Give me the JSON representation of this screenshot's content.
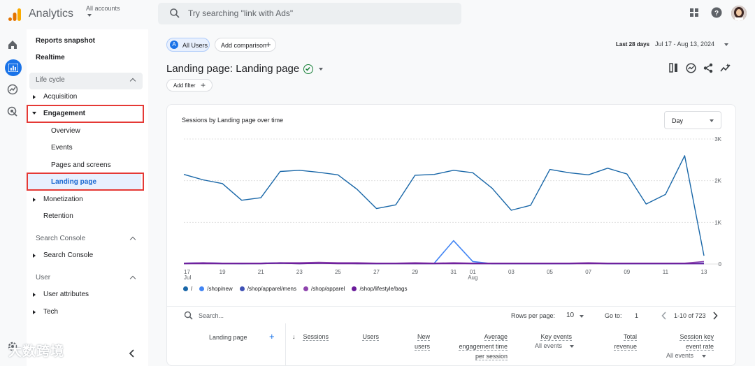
{
  "header": {
    "app_name": "Analytics",
    "account_label": "All accounts",
    "search_placeholder": "Try searching \"link with Ads\""
  },
  "nav": {
    "reports_snapshot": "Reports snapshot",
    "realtime": "Realtime",
    "lifecycle": "Life cycle",
    "acquisition": "Acquisition",
    "engagement": "Engagement",
    "overview": "Overview",
    "events": "Events",
    "pages_and_screens": "Pages and screens",
    "landing_page": "Landing page",
    "monetization": "Monetization",
    "retention": "Retention",
    "search_console_section": "Search Console",
    "search_console_item": "Search Console",
    "user_section": "User",
    "user_attributes": "User attributes",
    "tech": "Tech"
  },
  "toolbar": {
    "segment_letter": "A",
    "segment_label": "All Users",
    "add_comparison": "Add comparison",
    "date_prefix": "Last 28 days",
    "date_range": "Jul 17 - Aug 13, 2024",
    "page_title": "Landing page: Landing page",
    "add_filter": "Add filter"
  },
  "chart_data": {
    "type": "line",
    "title": "Sessions by Landing page over time",
    "granularity": "Day",
    "x_ticks": [
      "17",
      "19",
      "21",
      "23",
      "25",
      "27",
      "29",
      "31",
      "01",
      "03",
      "05",
      "07",
      "09",
      "11",
      "13"
    ],
    "x_month_labels": {
      "17": "Jul",
      "01": "Aug"
    },
    "y_ticks": [
      "0",
      "1K",
      "2K",
      "3K"
    ],
    "ylim": [
      0,
      3000
    ],
    "x": [
      "Jul 17",
      "Jul 18",
      "Jul 19",
      "Jul 20",
      "Jul 21",
      "Jul 22",
      "Jul 23",
      "Jul 24",
      "Jul 25",
      "Jul 26",
      "Jul 27",
      "Jul 28",
      "Jul 29",
      "Jul 30",
      "Jul 31",
      "Aug 01",
      "Aug 02",
      "Aug 03",
      "Aug 04",
      "Aug 05",
      "Aug 06",
      "Aug 07",
      "Aug 08",
      "Aug 09",
      "Aug 10",
      "Aug 11",
      "Aug 12",
      "Aug 13"
    ],
    "series": [
      {
        "name": "/",
        "color": "#1967a8",
        "values": [
          2150,
          2020,
          1930,
          1530,
          1590,
          2220,
          2250,
          2200,
          2140,
          1790,
          1330,
          1420,
          2130,
          2150,
          2250,
          2190,
          1820,
          1290,
          1410,
          2270,
          2190,
          2140,
          2300,
          2160,
          1440,
          1670,
          2600,
          200
        ]
      },
      {
        "name": "/shop/new",
        "color": "#4285f4",
        "values": [
          20,
          30,
          20,
          10,
          20,
          30,
          20,
          30,
          20,
          20,
          10,
          20,
          20,
          20,
          560,
          60,
          10,
          10,
          10,
          10,
          10,
          20,
          10,
          10,
          10,
          10,
          10,
          20
        ]
      },
      {
        "name": "/shop/apparel/mens",
        "color": "#3f51b5",
        "values": [
          10,
          20,
          10,
          10,
          10,
          20,
          10,
          20,
          20,
          10,
          10,
          10,
          10,
          10,
          20,
          10,
          10,
          10,
          10,
          10,
          10,
          20,
          10,
          10,
          10,
          10,
          10,
          10
        ]
      },
      {
        "name": "/shop/apparel",
        "color": "#8e44ad",
        "values": [
          20,
          30,
          20,
          20,
          20,
          30,
          30,
          40,
          30,
          30,
          20,
          20,
          30,
          20,
          30,
          20,
          20,
          20,
          20,
          20,
          20,
          30,
          20,
          20,
          20,
          20,
          20,
          60
        ]
      },
      {
        "name": "/shop/lifestyle/bags",
        "color": "#6a1b9a",
        "values": [
          10,
          10,
          10,
          10,
          10,
          20,
          10,
          20,
          10,
          10,
          10,
          10,
          10,
          10,
          10,
          10,
          10,
          10,
          10,
          10,
          10,
          10,
          10,
          10,
          10,
          10,
          10,
          10
        ]
      }
    ]
  },
  "table": {
    "search_placeholder": "Search...",
    "rows_per_page_label": "Rows per page:",
    "rows_per_page_value": "10",
    "goto_label": "Go to:",
    "goto_value": "1",
    "pagination": "1-10 of 723",
    "col_dimension": "Landing page",
    "col_sessions": "Sessions",
    "col_users": "Users",
    "col_new_users_1": "New",
    "col_new_users_2": "users",
    "col_avg_eng_1": "Average",
    "col_avg_eng_2": "engagement time",
    "col_avg_eng_3": "per session",
    "col_key_events": "Key events",
    "col_key_events_sub": "All events",
    "col_revenue_1": "Total",
    "col_revenue_2": "revenue",
    "col_skr_1": "Session key",
    "col_skr_2": "event rate",
    "col_skr_sub": "All events"
  },
  "watermark": "大数跨境",
  "colors": {
    "accent": "#1a73e8",
    "highlight_box": "#e53935",
    "active_nav_bg": "#e8f0fe"
  }
}
